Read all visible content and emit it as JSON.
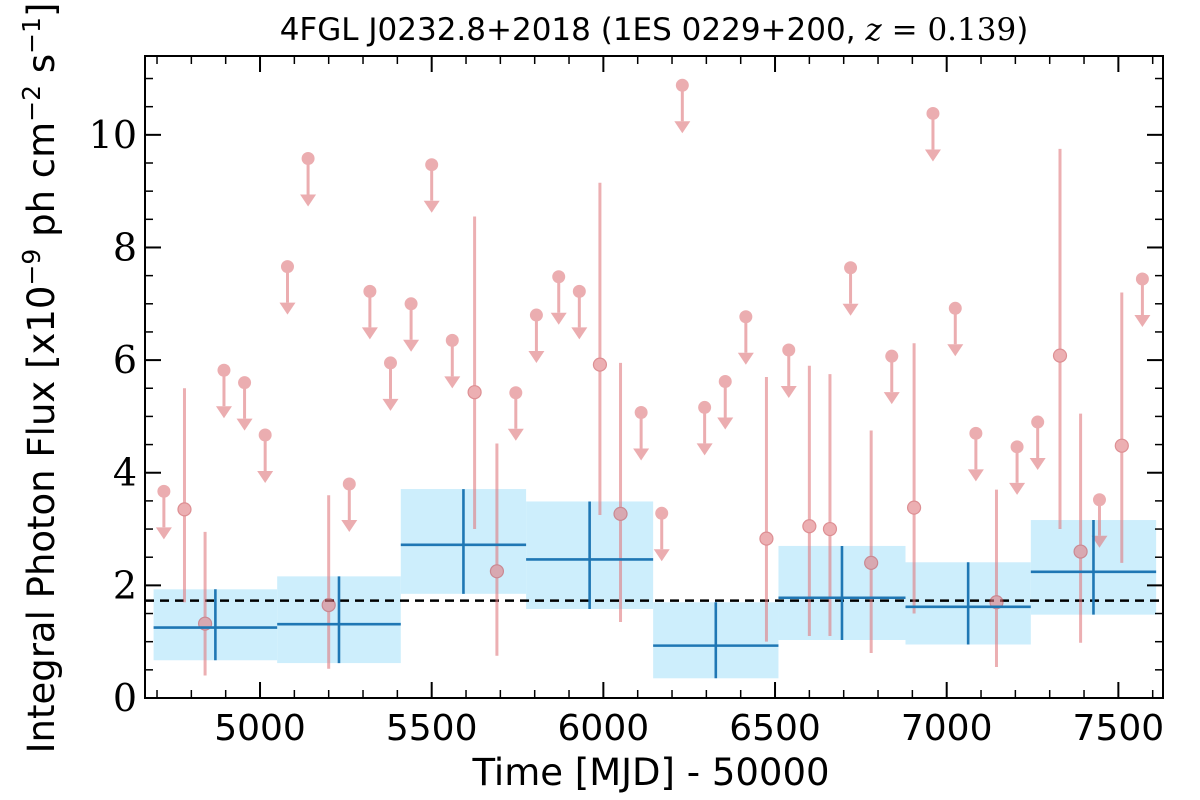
{
  "chart_data": {
    "type": "scatter",
    "title": {
      "prefix": "4FGL J0232.8+2018 (1ES 0229+200, ",
      "z_symbol": "z",
      "z_eq": " = ",
      "z_value": "0.139",
      "suffix": ")"
    },
    "xlabel": "Time [MJD] - 50000",
    "ylabel": {
      "main": "Integral Photon Flux [x10",
      "exp1": "−9",
      "mid": " ph cm",
      "exp2": "−2",
      "mid2": " s",
      "exp3": "−1",
      "end": "]"
    },
    "xlim": [
      4665,
      7630
    ],
    "ylim": [
      0,
      11.4
    ],
    "xticks": [
      5000,
      5500,
      6000,
      6500,
      7000,
      7500
    ],
    "yticks": [
      0,
      2,
      4,
      6,
      8,
      10
    ],
    "grid": false,
    "reference_line": {
      "y": 1.73,
      "style": "dashed",
      "color": "#000000"
    },
    "colors": {
      "monthly": "#e07b80",
      "binned_line": "#1f77b4",
      "binned_fill": "#cdeefc"
    },
    "series": [
      {
        "kind": "detections",
        "points": [
          {
            "x": 4780,
            "y": 3.35,
            "lo": 1.7,
            "hi": 5.5
          },
          {
            "x": 4840,
            "y": 1.32,
            "lo": 0.4,
            "hi": 2.95
          },
          {
            "x": 5200,
            "y": 1.65,
            "lo": 0.52,
            "hi": 3.6
          },
          {
            "x": 5625,
            "y": 5.43,
            "lo": 3.0,
            "hi": 8.55
          },
          {
            "x": 5690,
            "y": 2.25,
            "lo": 0.75,
            "hi": 4.52
          },
          {
            "x": 5990,
            "y": 5.92,
            "lo": 3.25,
            "hi": 9.15
          },
          {
            "x": 6050,
            "y": 3.27,
            "lo": 1.35,
            "hi": 5.95
          },
          {
            "x": 6475,
            "y": 2.83,
            "lo": 1.0,
            "hi": 5.7
          },
          {
            "x": 6600,
            "y": 3.05,
            "lo": 1.1,
            "hi": 5.9
          },
          {
            "x": 6660,
            "y": 3.0,
            "lo": 1.1,
            "hi": 5.75
          },
          {
            "x": 6780,
            "y": 2.4,
            "lo": 0.8,
            "hi": 4.75
          },
          {
            "x": 6905,
            "y": 3.38,
            "lo": 1.5,
            "hi": 6.3
          },
          {
            "x": 7145,
            "y": 1.7,
            "lo": 0.55,
            "hi": 3.7
          },
          {
            "x": 7330,
            "y": 6.08,
            "lo": 3.0,
            "hi": 9.75
          },
          {
            "x": 7390,
            "y": 2.6,
            "lo": 0.98,
            "hi": 5.05
          },
          {
            "x": 7510,
            "y": 4.48,
            "lo": 2.4,
            "hi": 7.2
          }
        ]
      },
      {
        "kind": "upper_limits",
        "points": [
          {
            "x": 4720,
            "y": 3.67
          },
          {
            "x": 4895,
            "y": 5.82
          },
          {
            "x": 4955,
            "y": 5.6
          },
          {
            "x": 5015,
            "y": 4.67
          },
          {
            "x": 5080,
            "y": 7.66
          },
          {
            "x": 5140,
            "y": 9.58
          },
          {
            "x": 5260,
            "y": 3.8
          },
          {
            "x": 5320,
            "y": 7.22
          },
          {
            "x": 5380,
            "y": 5.95
          },
          {
            "x": 5440,
            "y": 7.0
          },
          {
            "x": 5500,
            "y": 9.47
          },
          {
            "x": 5560,
            "y": 6.35
          },
          {
            "x": 5745,
            "y": 5.42
          },
          {
            "x": 5805,
            "y": 6.8
          },
          {
            "x": 5870,
            "y": 7.48
          },
          {
            "x": 5930,
            "y": 7.22
          },
          {
            "x": 6110,
            "y": 5.07
          },
          {
            "x": 6170,
            "y": 3.28
          },
          {
            "x": 6230,
            "y": 10.88
          },
          {
            "x": 6295,
            "y": 5.16
          },
          {
            "x": 6355,
            "y": 5.62
          },
          {
            "x": 6415,
            "y": 6.77
          },
          {
            "x": 6540,
            "y": 6.18
          },
          {
            "x": 6720,
            "y": 7.64
          },
          {
            "x": 6840,
            "y": 6.07
          },
          {
            "x": 6960,
            "y": 10.38
          },
          {
            "x": 7025,
            "y": 6.92
          },
          {
            "x": 7085,
            "y": 4.7
          },
          {
            "x": 7205,
            "y": 4.46
          },
          {
            "x": 7265,
            "y": 4.9
          },
          {
            "x": 7445,
            "y": 3.52
          },
          {
            "x": 7570,
            "y": 7.44
          }
        ]
      },
      {
        "kind": "binned",
        "bins": [
          {
            "x0": 4690,
            "x1": 5050,
            "y": 1.25,
            "lo": 0.67,
            "hi": 1.93
          },
          {
            "x0": 5050,
            "x1": 5410,
            "y": 1.31,
            "lo": 0.62,
            "hi": 2.16
          },
          {
            "x0": 5410,
            "x1": 5775,
            "y": 2.72,
            "lo": 1.85,
            "hi": 3.71
          },
          {
            "x0": 5775,
            "x1": 6145,
            "y": 2.46,
            "lo": 1.58,
            "hi": 3.49
          },
          {
            "x0": 6145,
            "x1": 6510,
            "y": 0.93,
            "lo": 0.35,
            "hi": 1.7
          },
          {
            "x0": 6510,
            "x1": 6880,
            "y": 1.78,
            "lo": 1.03,
            "hi": 2.7
          },
          {
            "x0": 6880,
            "x1": 7245,
            "y": 1.62,
            "lo": 0.95,
            "hi": 2.41
          },
          {
            "x0": 7245,
            "x1": 7610,
            "y": 2.24,
            "lo": 1.48,
            "hi": 3.16
          }
        ]
      }
    ]
  }
}
